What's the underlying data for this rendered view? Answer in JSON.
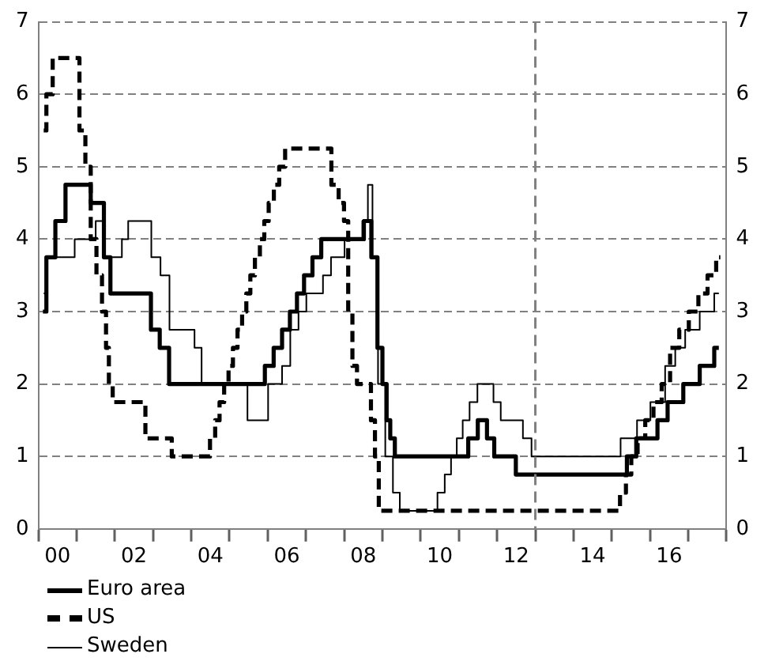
{
  "chart_data": {
    "type": "step",
    "xlim": [
      -0.5,
      17.5
    ],
    "xticks": [
      {
        "value": -0.5,
        "label": null
      },
      {
        "value": 0,
        "label": "00"
      },
      {
        "value": 0.5,
        "label": null
      },
      {
        "value": 1.5,
        "label": null
      },
      {
        "value": 2,
        "label": "02"
      },
      {
        "value": 2.5,
        "label": null
      },
      {
        "value": 3.5,
        "label": null
      },
      {
        "value": 4,
        "label": "04"
      },
      {
        "value": 4.5,
        "label": null
      },
      {
        "value": 5.5,
        "label": null
      },
      {
        "value": 6,
        "label": "06"
      },
      {
        "value": 6.5,
        "label": null
      },
      {
        "value": 7.5,
        "label": null
      },
      {
        "value": 8,
        "label": "08"
      },
      {
        "value": 8.5,
        "label": null
      },
      {
        "value": 9.5,
        "label": null
      },
      10,
      {
        "value": 10.5,
        "label": null
      },
      {
        "value": 11.5,
        "label": null
      },
      12,
      {
        "value": 12.5,
        "label": null
      },
      {
        "value": 13.5,
        "label": null
      },
      14,
      {
        "value": 14.5,
        "label": null
      },
      {
        "value": 15.5,
        "label": null
      },
      16,
      {
        "value": 16.5,
        "label": null
      },
      {
        "value": 17.5,
        "label": null
      }
    ],
    "ylim": [
      0,
      7
    ],
    "yticks": [
      0,
      1,
      2,
      3,
      4,
      5,
      6,
      7
    ],
    "y2lim": [
      0,
      7
    ],
    "y2ticks": [
      0,
      1,
      2,
      3,
      4,
      5,
      6,
      7
    ],
    "grid": "y",
    "legend": "bottom",
    "marker": "none",
    "ref_lines": [
      {
        "axis": "x",
        "value": 12.5,
        "color": "#808080",
        "line_style": "dashed"
      }
    ],
    "series": [
      {
        "name": "Euro area",
        "color": "#000000",
        "line_style": "solid",
        "x": [
          -0.38,
          -0.2,
          0.09,
          0.33,
          0.77,
          0.97,
          1.13,
          1.3,
          1.47,
          2.34,
          2.55,
          2.8,
          3.04,
          5.31,
          5.54,
          5.77,
          5.98,
          6.18,
          6.35,
          6.55,
          6.79,
          7.01,
          7.91,
          8.12,
          8.3,
          8.44,
          8.56,
          8.66,
          8.75,
          8.9,
          10.63,
          10.86,
          11.13,
          11.34,
          11.51,
          11.89,
          12.09,
          14.77,
          15.02,
          15.26,
          15.56,
          15.83,
          16.09,
          16.27,
          16.47,
          16.7,
          16.9,
          17.06,
          17.3
        ],
        "values": [
          3.0,
          3.75,
          4.25,
          4.75,
          4.75,
          4.5,
          4.5,
          3.75,
          3.25,
          3.25,
          2.75,
          2.5,
          2.0,
          2.0,
          2.25,
          2.5,
          2.75,
          3.0,
          3.25,
          3.5,
          3.75,
          4.0,
          4.0,
          4.25,
          3.75,
          2.5,
          2.0,
          1.5,
          1.25,
          1.0,
          1.0,
          1.25,
          1.5,
          1.25,
          1.0,
          1.0,
          0.75,
          0.75,
          1.0,
          1.25,
          1.25,
          1.5,
          1.75,
          1.75,
          2.0,
          2.0,
          2.25,
          2.25,
          2.5
        ]
      },
      {
        "name": "US",
        "color": "#000000",
        "line_style": "dashed",
        "x": [
          -0.36,
          -0.22,
          -0.03,
          0.49,
          0.66,
          0.8,
          0.94,
          1.1,
          1.23,
          1.31,
          1.38,
          1.51,
          2.2,
          2.4,
          2.89,
          3.09,
          3.91,
          4.07,
          4.18,
          4.3,
          4.42,
          4.53,
          4.65,
          4.77,
          4.89,
          4.99,
          5.1,
          5.23,
          5.36,
          5.46,
          5.59,
          5.73,
          5.87,
          6.04,
          7.06,
          7.27,
          7.44,
          7.55,
          7.66,
          7.77,
          7.9,
          8.13,
          8.27,
          8.34,
          8.47,
          14.63,
          14.8,
          14.94,
          15.08,
          15.27,
          15.48,
          15.7,
          15.91,
          16.14,
          16.39,
          16.64,
          16.89,
          17.12,
          17.34
        ],
        "values": [
          5.5,
          6.0,
          6.5,
          6.5,
          5.5,
          5.0,
          4.0,
          3.5,
          3.0,
          2.5,
          2.0,
          1.75,
          1.75,
          1.25,
          1.25,
          1.0,
          1.0,
          1.25,
          1.5,
          1.75,
          2.0,
          2.25,
          2.5,
          2.75,
          3.0,
          3.25,
          3.5,
          3.75,
          4.0,
          4.25,
          4.5,
          4.75,
          5.0,
          5.25,
          5.25,
          4.75,
          4.5,
          4.25,
          3.0,
          2.25,
          2.0,
          2.0,
          1.5,
          1.0,
          0.25,
          0.25,
          0.5,
          0.75,
          1.0,
          1.25,
          1.5,
          1.75,
          2.0,
          2.5,
          2.75,
          3.0,
          3.25,
          3.5,
          3.75
        ]
      },
      {
        "name": "Sweden",
        "color": "#000000",
        "line_style": "solid",
        "x": [
          -0.36,
          -0.2,
          0.35,
          0.55,
          0.9,
          1.1,
          1.3,
          1.6,
          1.77,
          1.93,
          2.34,
          2.57,
          2.82,
          3.04,
          3.49,
          3.68,
          3.86,
          4.87,
          5.07,
          5.41,
          5.61,
          5.77,
          5.98,
          6.2,
          6.41,
          6.61,
          6.84,
          7.05,
          7.26,
          7.41,
          7.61,
          7.89,
          8.06,
          8.18,
          8.3,
          8.47,
          8.68,
          8.87,
          9.04,
          9.84,
          10.04,
          10.22,
          10.37,
          10.52,
          10.68,
          10.88,
          11.09,
          11.31,
          11.5,
          11.69,
          12.06,
          12.29,
          12.51,
          14.63,
          14.83,
          15.06,
          15.26,
          15.41,
          15.61,
          15.77,
          16.02,
          16.3,
          16.54,
          16.7,
          16.9,
          17.06,
          17.3
        ],
        "values": [
          3.25,
          3.75,
          3.75,
          4.0,
          4.0,
          4.25,
          3.75,
          3.75,
          4.0,
          4.25,
          4.25,
          3.75,
          3.5,
          2.75,
          2.75,
          2.5,
          2.0,
          2.0,
          1.5,
          1.5,
          2.0,
          2.0,
          2.25,
          2.75,
          3.0,
          3.25,
          3.25,
          3.5,
          3.75,
          3.75,
          4.0,
          4.0,
          4.25,
          4.75,
          3.75,
          2.0,
          1.0,
          0.5,
          0.25,
          0.25,
          0.5,
          0.75,
          1.0,
          1.25,
          1.5,
          1.75,
          2.0,
          2.0,
          1.75,
          1.5,
          1.5,
          1.25,
          1.0,
          1.0,
          1.25,
          1.25,
          1.5,
          1.5,
          1.75,
          1.75,
          2.25,
          2.5,
          2.75,
          2.75,
          3.0,
          3.0,
          3.25
        ]
      }
    ]
  }
}
